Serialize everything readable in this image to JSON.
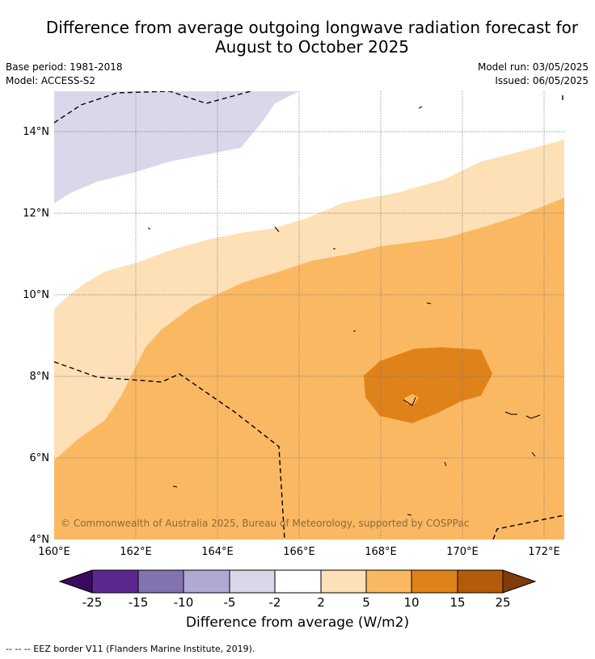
{
  "title_line1": "Difference from average outgoing longwave radiation forecast for",
  "title_line2": "August to October 2025",
  "meta": {
    "base_period": "Base period: 1981-2018",
    "model": "Model: ACCESS-S2",
    "model_run": "Model run: 03/05/2025",
    "issued": "Issued: 06/05/2025"
  },
  "map": {
    "lat_labels": [
      "4°N",
      "6°N",
      "8°N",
      "10°N",
      "12°N",
      "14°N"
    ],
    "lon_labels": [
      "160°E",
      "162°E",
      "164°E",
      "166°E",
      "168°E",
      "170°E",
      "172°E"
    ],
    "copyright": "© Commonwealth of Australia 2025, Bureau of Meteorology, supported by COSPPac"
  },
  "colorbar": {
    "ticks": [
      "-25",
      "-15",
      "-10",
      "-5",
      "-2",
      "2",
      "5",
      "10",
      "15",
      "25"
    ],
    "colors": [
      "#5b2890",
      "#8373b0",
      "#b1a9d3",
      "#d8d8ea",
      "#ffffff",
      "#fde0b5",
      "#fbb862",
      "#e0821a",
      "#b35a0b"
    ],
    "under_color": "#3a0a5e",
    "over_color": "#7f3b08",
    "title": "Difference from average (W/m2)"
  },
  "legend": {
    "eez": "--  --  -- EEZ border V11 (Flanders Marine Institute, 2019)."
  }
}
